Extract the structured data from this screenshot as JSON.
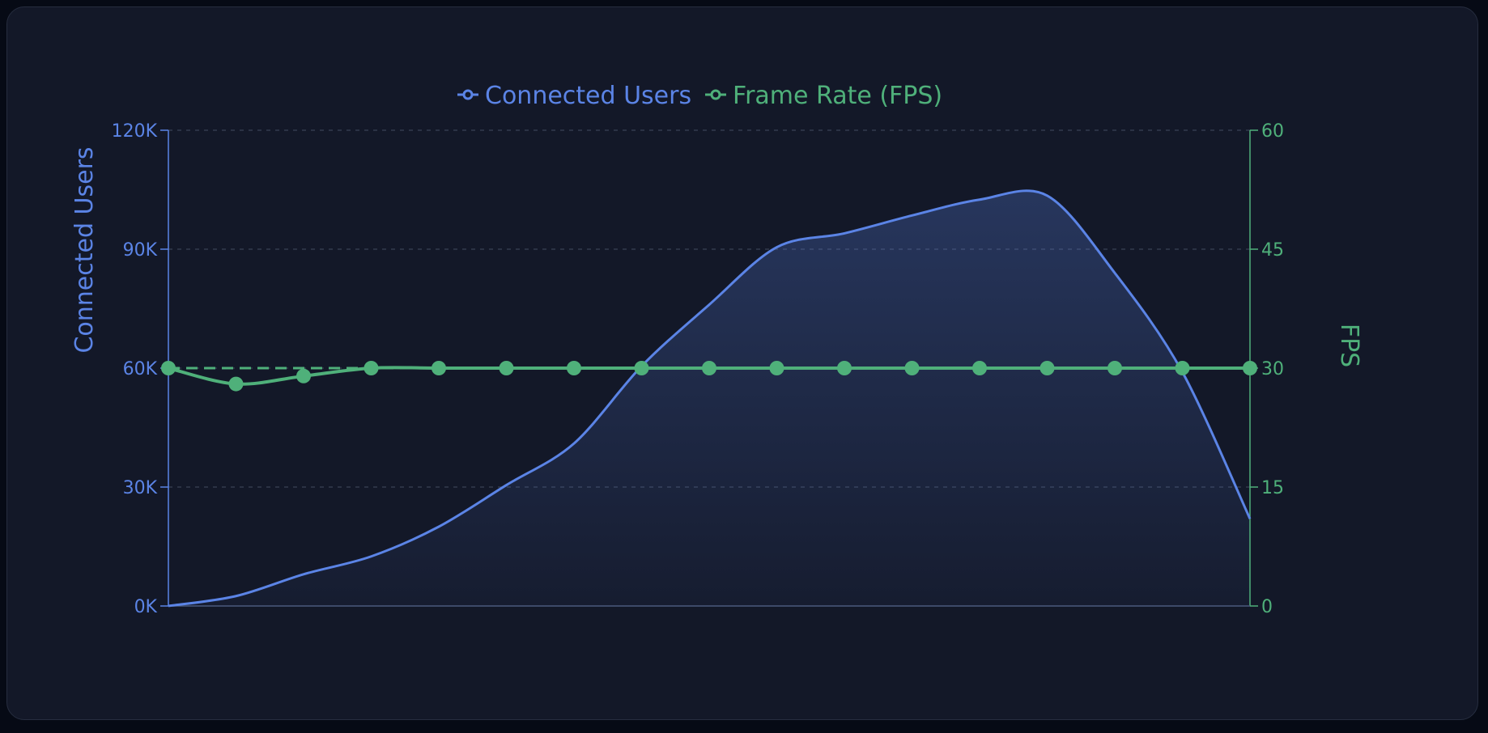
{
  "chart_data": {
    "type": "line",
    "x": [
      0,
      1,
      2,
      3,
      4,
      5,
      6,
      7,
      8,
      9,
      10,
      11,
      12,
      13,
      14,
      15,
      16
    ],
    "series": [
      {
        "name": "Connected Users",
        "axis": "left",
        "color": "#5b84e6",
        "fill": true,
        "values": [
          0,
          2500,
          8000,
          12500,
          20000,
          30500,
          41000,
          60500,
          76000,
          90500,
          94000,
          98500,
          102500,
          103500,
          84000,
          59000,
          22000
        ]
      },
      {
        "name": "Frame Rate (FPS)",
        "axis": "right",
        "color": "#4fb07a",
        "markers": true,
        "values": [
          30,
          28,
          29,
          30,
          30,
          30,
          30,
          30,
          30,
          30,
          30,
          30,
          30,
          30,
          30,
          30,
          30
        ]
      }
    ],
    "reference_line": {
      "axis": "right",
      "value": 30,
      "style": "dashed"
    },
    "y_left": {
      "label": "Connected Users",
      "ylim": [
        0,
        120000
      ],
      "ticks": [
        "0K",
        "30K",
        "60K",
        "90K",
        "120K"
      ],
      "tick_values": [
        0,
        30000,
        60000,
        90000,
        120000
      ]
    },
    "y_right": {
      "label": "FPS",
      "ylim": [
        0,
        60
      ],
      "ticks": [
        "0",
        "15",
        "30",
        "45",
        "60"
      ],
      "tick_values": [
        0,
        15,
        30,
        45,
        60
      ]
    },
    "grid": true,
    "legend_position": "top-center"
  }
}
